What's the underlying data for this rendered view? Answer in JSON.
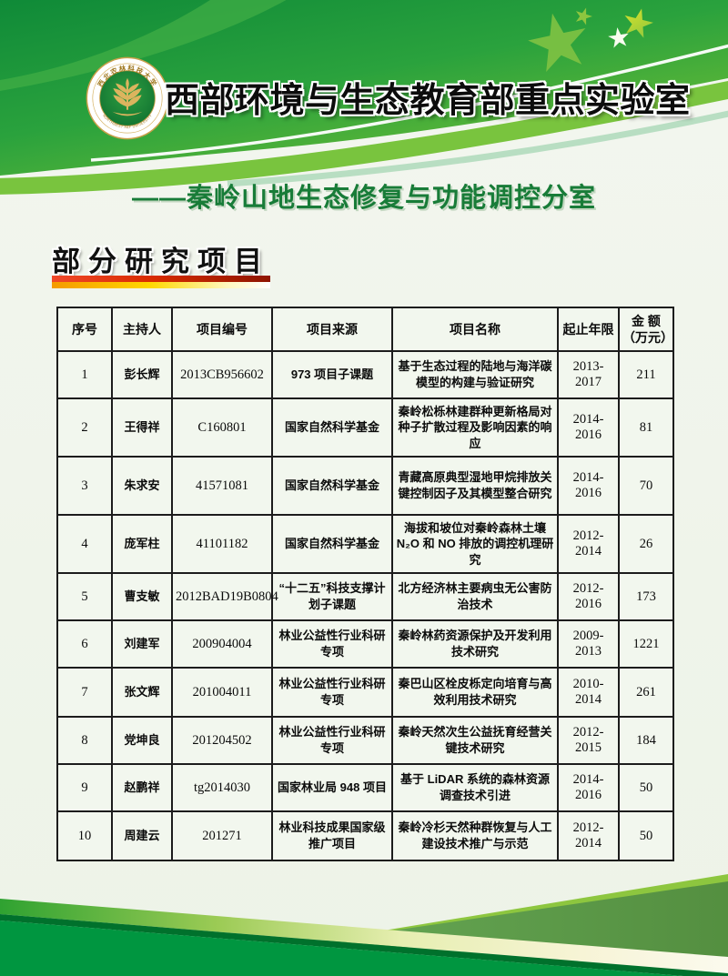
{
  "header": {
    "title": "西部环境与生态教育部重点实验室"
  },
  "logo": {
    "top_text": "西北农林科技大学",
    "bottom_text": "NORTHWEST A&F UNIVERSITY"
  },
  "subtitle": "——秦岭山地生态修复与功能调控分室",
  "section": {
    "title": "部分研究项目"
  },
  "table": {
    "headers": [
      {
        "label": "序号"
      },
      {
        "label": "主持人"
      },
      {
        "label": "项目编号"
      },
      {
        "label": "项目来源"
      },
      {
        "label": "项目名称"
      },
      {
        "label": "起止年限"
      },
      {
        "label": "金 额",
        "sub": "（万元）"
      }
    ],
    "rows": [
      {
        "no": "1",
        "host": "彭长辉",
        "code": "2013CB956602",
        "source": "973 项目子课题",
        "name": "基于生态过程的陆地与海洋碳模型的构建与验证研究",
        "years": "2013-2017",
        "amount": "211"
      },
      {
        "no": "2",
        "host": "王得祥",
        "code": "C160801",
        "source": "国家自然科学基金",
        "name": "秦岭松栎林建群种更新格局对种子扩散过程及影响因素的响应",
        "years": "2014-2016",
        "amount": "81"
      },
      {
        "no": "3",
        "host": "朱求安",
        "code": "41571081",
        "source": "国家自然科学基金",
        "name": "青藏高原典型湿地甲烷排放关键控制因子及其模型整合研究",
        "years": "2014-2016",
        "amount": "70"
      },
      {
        "no": "4",
        "host": "庞军柱",
        "code": "41101182",
        "source": "国家自然科学基金",
        "name": "海拔和坡位对秦岭森林土壤N₂O 和 NO 排放的调控机理研究",
        "years": "2012-2014",
        "amount": "26"
      },
      {
        "no": "5",
        "host": "曹支敏",
        "code": "2012BAD19B0804",
        "source": "“十二五”科技支撑计划子课题",
        "name": "北方经济林主要病虫无公害防治技术",
        "years": "2012-2016",
        "amount": "173"
      },
      {
        "no": "6",
        "host": "刘建军",
        "code": "200904004",
        "source": "林业公益性行业科研专项",
        "name": "秦岭林药资源保护及开发利用技术研究",
        "years": "2009-2013",
        "amount": "1221"
      },
      {
        "no": "7",
        "host": "张文辉",
        "code": "201004011",
        "source": "林业公益性行业科研专项",
        "name": "秦巴山区栓皮栎定向培育与高效利用技术研究",
        "years": "2010-2014",
        "amount": "261"
      },
      {
        "no": "8",
        "host": "党坤良",
        "code": "201204502",
        "source": "林业公益性行业科研专项",
        "name": "秦岭天然次生公益抚育经营关键技术研究",
        "years": "2012-2015",
        "amount": "184"
      },
      {
        "no": "9",
        "host": "赵鹏祥",
        "code": "tg2014030",
        "source": "国家林业局 948 项目",
        "name": "基于 LiDAR 系统的森林资源调查技术引进",
        "years": "2014-2016",
        "amount": "50"
      },
      {
        "no": "10",
        "host": "周建云",
        "code": "201271",
        "source": "林业科技成果国家级推广项目",
        "name": "秦岭冷杉天然种群恢复与人工建设技术推广与示范",
        "years": "2012-2014",
        "amount": "50"
      }
    ]
  },
  "colors": {
    "header_green": "#2aa23d",
    "bright_band_green": "#79c43e",
    "star_green": "#8dc63f",
    "subtitle_green": "#187c38",
    "bar_red": "#d92b00",
    "bar_yellow": "#ffd800",
    "table_cell_bg": "#f2f7ee",
    "footer_green": "#009640",
    "footer_dark_green": "#00712c",
    "footer_sage_green": "#5d9e4a",
    "footer_cream": "#f7f4d6",
    "logo_gold": "#c9a04a"
  }
}
